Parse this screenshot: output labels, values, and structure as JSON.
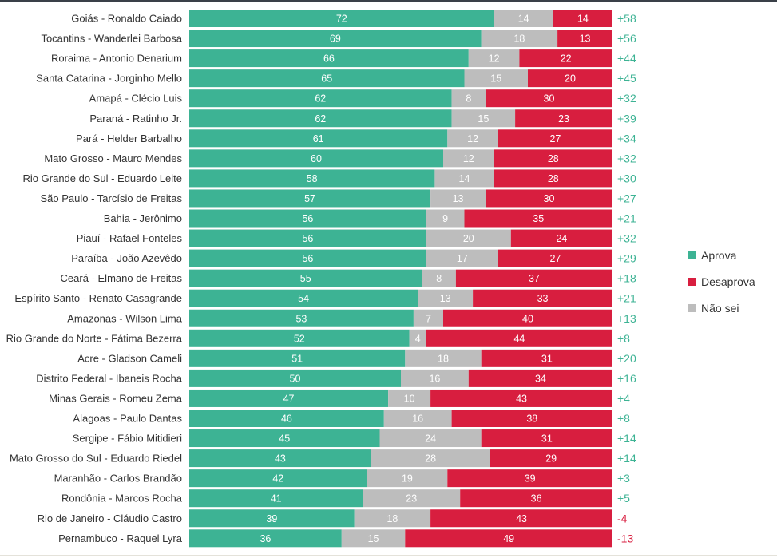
{
  "chart_data": {
    "type": "bar",
    "orientation": "horizontal",
    "stacked": true,
    "percent_stacked": true,
    "title": "",
    "xlabel": "",
    "ylabel": "",
    "xlim": [
      0,
      100
    ],
    "grid": false,
    "legend_position": "right",
    "colors": {
      "Aprova": "#3db394",
      "Não sei": "#bdbdbd",
      "Desaprova": "#d81e3f",
      "net_positive": "#3db394",
      "net_negative": "#d81e3f"
    },
    "categories": [
      "Goiás - Ronaldo Caiado",
      "Tocantins - Wanderlei Barbosa",
      "Roraima - Antonio Denarium",
      "Santa Catarina - Jorginho Mello",
      "Amapá - Clécio Luis",
      "Paraná - Ratinho Jr.",
      "Pará - Helder Barbalho",
      "Mato Grosso - Mauro Mendes",
      "Rio Grande do Sul - Eduardo Leite",
      "São Paulo - Tarcísio de Freitas",
      "Bahia - Jerônimo",
      "Piauí - Rafael Fonteles",
      "Paraíba - João Azevêdo",
      "Ceará - Elmano de Freitas",
      "Espírito Santo - Renato Casagrande",
      "Amazonas - Wilson Lima",
      "Rio Grande do Norte - Fátima Bezerra",
      "Acre - Gladson Cameli",
      "Distrito Federal - Ibaneis Rocha",
      "Minas Gerais - Romeu Zema",
      "Alagoas - Paulo Dantas",
      "Sergipe - Fábio Mitidieri",
      "Mato Grosso do Sul - Eduardo Riedel",
      "Maranhão - Carlos Brandão",
      "Rondônia - Marcos Rocha",
      "Rio de Janeiro - Cláudio Castro",
      "Pernambuco - Raquel Lyra"
    ],
    "series": [
      {
        "name": "Aprova",
        "values": [
          72,
          69,
          66,
          65,
          62,
          62,
          61,
          60,
          58,
          57,
          56,
          56,
          56,
          55,
          54,
          53,
          52,
          51,
          50,
          47,
          46,
          45,
          43,
          42,
          41,
          39,
          36
        ]
      },
      {
        "name": "Não sei",
        "values": [
          14,
          18,
          12,
          15,
          8,
          15,
          12,
          12,
          14,
          13,
          9,
          20,
          17,
          8,
          13,
          7,
          4,
          18,
          16,
          10,
          16,
          24,
          28,
          19,
          23,
          18,
          15
        ]
      },
      {
        "name": "Desaprova",
        "values": [
          14,
          13,
          22,
          20,
          30,
          23,
          27,
          28,
          28,
          30,
          35,
          24,
          27,
          37,
          33,
          40,
          44,
          31,
          34,
          43,
          38,
          31,
          29,
          39,
          36,
          43,
          49
        ]
      }
    ],
    "net_labels": [
      "+58",
      "+56",
      "+44",
      "+45",
      "+32",
      "+39",
      "+34",
      "+32",
      "+30",
      "+27",
      "+21",
      "+32",
      "+29",
      "+18",
      "+21",
      "+13",
      "+8",
      "+20",
      "+16",
      "+4",
      "+8",
      "+14",
      "+14",
      "+3",
      "+5",
      "-4",
      "-13"
    ],
    "legend": [
      "Aprova",
      "Desaprova",
      "Não sei"
    ]
  }
}
